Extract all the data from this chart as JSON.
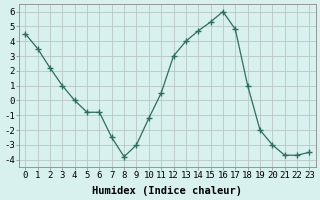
{
  "x": [
    0,
    1,
    2,
    3,
    4,
    5,
    6,
    7,
    8,
    9,
    10,
    11,
    12,
    13,
    14,
    15,
    16,
    17,
    18,
    19,
    20,
    21,
    22,
    23
  ],
  "y": [
    4.5,
    3.5,
    2.2,
    1.0,
    0.0,
    -0.8,
    -0.8,
    -2.5,
    -3.8,
    -3.0,
    -1.2,
    0.5,
    3.0,
    4.0,
    4.7,
    5.3,
    6.0,
    4.8,
    1.0,
    -2.0,
    -3.0,
    -3.7,
    -3.7,
    -3.5
  ],
  "xlabel": "Humidex (Indice chaleur)",
  "ylim": [
    -4.5,
    6.5
  ],
  "xlim": [
    -0.5,
    23.5
  ],
  "line_color": "#2d6e5e",
  "marker": "+",
  "marker_size": 4,
  "bg_color": "#d8f0ee",
  "grid_color": "#b8c8c4",
  "xticks": [
    0,
    1,
    2,
    3,
    4,
    5,
    6,
    7,
    8,
    9,
    10,
    11,
    12,
    13,
    14,
    15,
    16,
    17,
    18,
    19,
    20,
    21,
    22,
    23
  ],
  "yticks": [
    -4,
    -3,
    -2,
    -1,
    0,
    1,
    2,
    3,
    4,
    5,
    6
  ],
  "tick_fontsize": 6.5,
  "xlabel_fontsize": 7.5
}
